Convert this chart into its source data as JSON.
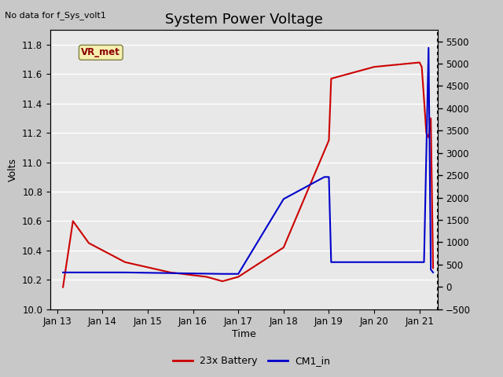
{
  "title": "System Power Voltage",
  "xlabel": "Time",
  "ylabel": "Volts",
  "no_data_label": "No data for f_Sys_volt1",
  "vr_met_label": "VR_met",
  "ylim_left": [
    10.0,
    11.9
  ],
  "ylim_right": [
    -500,
    5750
  ],
  "yticks_left": [
    10.0,
    10.2,
    10.4,
    10.6,
    10.8,
    11.0,
    11.2,
    11.4,
    11.6,
    11.8
  ],
  "yticks_right": [
    -500,
    0,
    500,
    1000,
    1500,
    2000,
    2500,
    3000,
    3500,
    4000,
    4500,
    5000,
    5500
  ],
  "plot_bg_color": "#e8e8e8",
  "fig_bg_color": "#c8c8c8",
  "grid_color": "white",
  "red_series": {
    "label": "23x Battery",
    "color": "#cc0000",
    "x": [
      13.13,
      13.35,
      13.7,
      14.5,
      15.5,
      16.3,
      16.65,
      17.0,
      18.0,
      19.0,
      19.05,
      20.0,
      21.0,
      21.05,
      21.1,
      21.15,
      21.2,
      21.25,
      21.3
    ],
    "y": [
      10.15,
      10.6,
      10.45,
      10.32,
      10.25,
      10.22,
      10.19,
      10.22,
      10.42,
      11.15,
      11.57,
      11.65,
      11.68,
      11.65,
      11.43,
      11.2,
      11.17,
      11.3,
      10.28
    ]
  },
  "blue_series": {
    "label": "CM1_in",
    "color": "#0000cc",
    "x": [
      13.13,
      13.35,
      14.5,
      16.65,
      17.0,
      18.0,
      18.9,
      19.0,
      19.05,
      20.0,
      21.0,
      21.1,
      21.2,
      21.25,
      21.3
    ],
    "y": [
      10.25,
      10.25,
      10.25,
      10.24,
      10.24,
      10.75,
      10.9,
      10.9,
      10.32,
      10.32,
      10.32,
      10.32,
      11.78,
      10.27,
      10.25
    ]
  },
  "xlim": [
    12.85,
    21.4
  ],
  "xticks": [
    13,
    14,
    15,
    16,
    17,
    18,
    19,
    20,
    21
  ],
  "xtick_labels": [
    "Jan 13",
    "Jan 14",
    "Jan 15",
    "Jan 16",
    "Jan 17",
    "Jan 18",
    "Jan 19",
    "Jan 20",
    "Jan 21"
  ],
  "legend_items": [
    {
      "label": "23x Battery",
      "color": "#cc0000"
    },
    {
      "label": "CM1_in",
      "color": "#0000cc"
    }
  ],
  "title_fontsize": 13,
  "label_fontsize": 9,
  "tick_fontsize": 8.5,
  "legend_fontsize": 9
}
